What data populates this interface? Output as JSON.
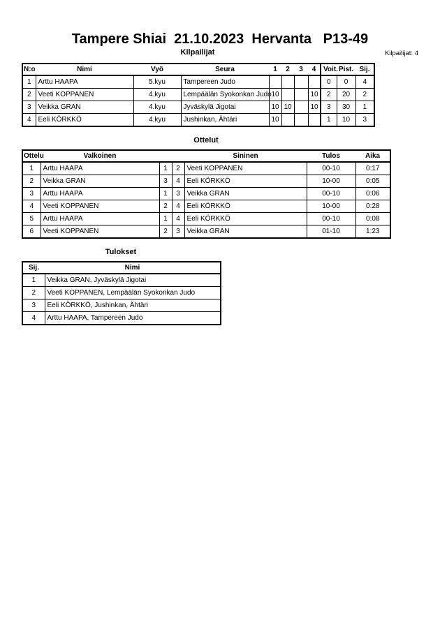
{
  "title": "Tampere Shiai  21.10.2023  Hervanta   P13-49",
  "competitors": {
    "heading": "Kilpailijat",
    "count_label": "Kilpailijat: 4",
    "columns": [
      "N:o",
      "Nimi",
      "Vyö",
      "Seura",
      "1",
      "2",
      "3",
      "4",
      "Voit.",
      "Pist.",
      "Sij."
    ],
    "rows": [
      {
        "no": "1",
        "name": "Arttu HAAPA",
        "belt": "5.kyu",
        "club": "Tampereen Judo",
        "s1": "",
        "s2": "",
        "s3": "",
        "s4": "",
        "wins": "0",
        "points": "0",
        "rank": "4"
      },
      {
        "no": "2",
        "name": "Veeti KOPPANEN",
        "belt": "4.kyu",
        "club": "Lempäälän Syokonkan Judo",
        "s1": "10",
        "s2": "",
        "s3": "",
        "s4": "10",
        "wins": "2",
        "points": "20",
        "rank": "2"
      },
      {
        "no": "3",
        "name": "Veikka GRAN",
        "belt": "4.kyu",
        "club": "Jyväskylä Jigotai",
        "s1": "10",
        "s2": "10",
        "s3": "",
        "s4": "10",
        "wins": "3",
        "points": "30",
        "rank": "1"
      },
      {
        "no": "4",
        "name": "Eeli KÖRKKÖ",
        "belt": "4.kyu",
        "club": "Jushinkan, Ähtäri",
        "s1": "10",
        "s2": "",
        "s3": "",
        "s4": "",
        "wins": "1",
        "points": "10",
        "rank": "3"
      }
    ]
  },
  "matches": {
    "heading": "Ottelut",
    "columns": [
      "Ottelu",
      "Valkoinen",
      "",
      "",
      "Sininen",
      "Tulos",
      "Aika"
    ],
    "rows": [
      {
        "no": "1",
        "white": "Arttu HAAPA",
        "wn": "1",
        "bn": "2",
        "blue": "Veeti KOPPANEN",
        "result": "00-10",
        "time": "0:17"
      },
      {
        "no": "2",
        "white": "Veikka GRAN",
        "wn": "3",
        "bn": "4",
        "blue": "Eeli KÖRKKÖ",
        "result": "10-00",
        "time": "0:05"
      },
      {
        "no": "3",
        "white": "Arttu HAAPA",
        "wn": "1",
        "bn": "3",
        "blue": "Veikka GRAN",
        "result": "00-10",
        "time": "0:06"
      },
      {
        "no": "4",
        "white": "Veeti KOPPANEN",
        "wn": "2",
        "bn": "4",
        "blue": "Eeli KÖRKKÖ",
        "result": "10-00",
        "time": "0:28"
      },
      {
        "no": "5",
        "white": "Arttu HAAPA",
        "wn": "1",
        "bn": "4",
        "blue": "Eeli KÖRKKÖ",
        "result": "00-10",
        "time": "0:08"
      },
      {
        "no": "6",
        "white": "Veeti KOPPANEN",
        "wn": "2",
        "bn": "3",
        "blue": "Veikka GRAN",
        "result": "01-10",
        "time": "1:23"
      }
    ]
  },
  "results": {
    "heading": "Tulokset",
    "columns": [
      "Sij.",
      "Nimi"
    ],
    "rows": [
      {
        "rank": "1",
        "name": "Veikka GRAN, Jyväskylä Jigotai"
      },
      {
        "rank": "2",
        "name": "Veeti KOPPANEN, Lempäälän Syokonkan Judo"
      },
      {
        "rank": "3",
        "name": "Eeli KÖRKKÖ, Jushinkan, Ähtäri"
      },
      {
        "rank": "4",
        "name": "Arttu HAAPA, Tampereen Judo"
      }
    ]
  }
}
